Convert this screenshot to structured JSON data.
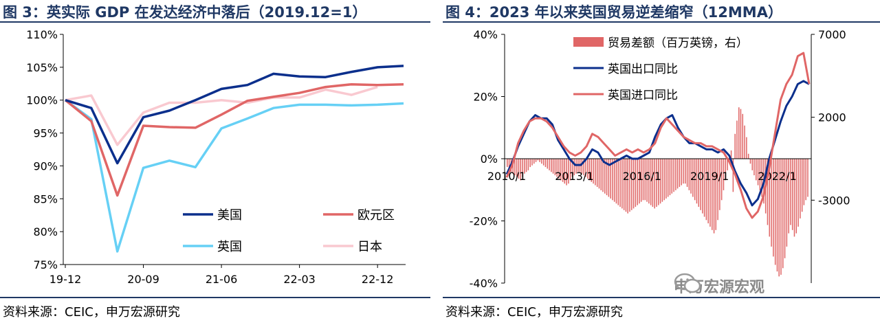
{
  "left": {
    "title": "图 3：英实际 GDP 在发达经济中落后（2019.12=1）",
    "source": "资料来源：CEIC，申万宏源研究",
    "chart_data": {
      "type": "line",
      "x": [
        "2019-12",
        "2020-03",
        "2020-06",
        "2020-09",
        "2020-12",
        "2021-03",
        "2021-06",
        "2021-09",
        "2021-12",
        "2022-03",
        "2022-06",
        "2022-09",
        "2022-12",
        "2023-03"
      ],
      "xticks": [
        "19-12",
        "20-09",
        "21-06",
        "22-03",
        "22-12"
      ],
      "yticks": [
        "75%",
        "80%",
        "85%",
        "90%",
        "95%",
        "100%",
        "105%",
        "110%"
      ],
      "ylim": [
        75,
        110
      ],
      "series": [
        {
          "name": "美国",
          "color": "#0b2f8c",
          "values": [
            100,
            98.8,
            90.4,
            97.4,
            98.4,
            100.0,
            101.7,
            102.3,
            104.0,
            103.6,
            103.5,
            104.3,
            105.0,
            105.2
          ]
        },
        {
          "name": "欧元区",
          "color": "#e06666",
          "values": [
            100,
            96.8,
            85.5,
            96.1,
            95.9,
            95.8,
            97.8,
            99.9,
            100.5,
            101.1,
            102.0,
            102.4,
            102.3,
            102.4
          ]
        },
        {
          "name": "英国",
          "color": "#66d0f5",
          "values": [
            100,
            97.1,
            77.0,
            89.7,
            90.8,
            89.8,
            95.7,
            97.2,
            98.8,
            99.3,
            99.3,
            99.2,
            99.3,
            99.5
          ]
        },
        {
          "name": "日本",
          "color": "#f9c9d0",
          "values": [
            100,
            100.7,
            93.2,
            98.1,
            99.6,
            99.6,
            100.0,
            99.6,
            100.4,
            100.4,
            101.6,
            100.8,
            102.0,
            null
          ]
        }
      ]
    }
  },
  "right": {
    "title": "图 4：2023 年以来英国贸易逆差缩窄（12MMA）",
    "source": "资料来源：CEIC，申万宏源研究",
    "watermark": "申万宏源宏观",
    "chart_data": {
      "type": "bar+line",
      "x_range": [
        "2010/1",
        "2023/6"
      ],
      "xticks": [
        "2010/1",
        "2013/1",
        "2016/1",
        "2019/1",
        "2022/1"
      ],
      "y_left_ticks": [
        "-40%",
        "-20%",
        "0%",
        "20%",
        "40%"
      ],
      "y_left_lim": [
        -40,
        40
      ],
      "y_right_ticks": [
        "-3000",
        "2000",
        "7000"
      ],
      "y_right_lim": [
        -8000,
        7000
      ],
      "bar_series": {
        "name": "贸易差额（百万英镑，右）",
        "color": "#e06666",
        "values": [
          -1000,
          -1200,
          -1300,
          -1400,
          -1500,
          -1600,
          -1700,
          -1800,
          -1600,
          -1400,
          -1300,
          -1200,
          -1000,
          -900,
          -800,
          -700,
          -600,
          -700,
          -800,
          -900,
          -1000,
          -1100,
          -1200,
          -1300,
          -1400,
          -1500,
          -1600,
          -1700,
          -1800,
          -1900,
          -2000,
          -2100,
          -2000,
          -1800,
          -1600,
          -1500,
          -1400,
          -1300,
          -1300,
          -1400,
          -1500,
          -1600,
          -1700,
          -1800,
          -1900,
          -2000,
          -2100,
          -2200,
          -2300,
          -2400,
          -2500,
          -2600,
          -2700,
          -2800,
          -2900,
          -3000,
          -3100,
          -3200,
          -3300,
          -3400,
          -3500,
          -3600,
          -3700,
          -3800,
          -3700,
          -3600,
          -3500,
          -3400,
          -3300,
          -3200,
          -3100,
          -3000,
          -3000,
          -3100,
          -3200,
          -3300,
          -3400,
          -3500,
          -3400,
          -3300,
          -3200,
          -3100,
          -3000,
          -2900,
          -2800,
          -2700,
          -2600,
          -2500,
          -2400,
          -2300,
          -2200,
          -2100,
          -2000,
          -2000,
          -2200,
          -2400,
          -2600,
          -2800,
          -3000,
          -3200,
          -3400,
          -3600,
          -3800,
          -4000,
          -4200,
          -4400,
          -4600,
          -4800,
          -5000,
          -4800,
          -4200,
          -3600,
          -3000,
          -2400,
          -1800,
          -1200,
          -600,
          0,
          -2500,
          1000,
          1800,
          2600,
          2500,
          2200,
          1500,
          800,
          -200,
          -800,
          -1200,
          -1500,
          -1800,
          -2100,
          -2400,
          -2800,
          -3200,
          -3800,
          -4500,
          -5200,
          -5800,
          -6400,
          -6900,
          -7300,
          -7600,
          -7500,
          -7100,
          -6500,
          -5800,
          -5000,
          -4500,
          -4800,
          -5200,
          -5000,
          -4600,
          -4100,
          -3700,
          -3300,
          -3000,
          -2800
        ]
      },
      "line_series": [
        {
          "name": "英国出口同比",
          "color": "#0b2f8c",
          "values": [
            -5,
            -1,
            4,
            8,
            12,
            14,
            13,
            13,
            11,
            6,
            3,
            0,
            -2,
            -2,
            0,
            3,
            2,
            -1,
            -2,
            -1,
            0,
            1,
            0,
            0,
            1,
            2,
            7,
            11,
            13,
            14,
            10,
            7,
            5,
            5,
            4,
            3,
            3,
            2,
            3,
            1,
            -4,
            -8,
            -11,
            -15,
            -13,
            -8,
            0,
            6,
            12,
            17,
            20,
            24,
            25,
            24
          ]
        },
        {
          "name": "英国进口同比",
          "color": "#e06666",
          "values": [
            -6,
            -2,
            5,
            9,
            12,
            13,
            13,
            12,
            10,
            7,
            4,
            2,
            1,
            2,
            4,
            8,
            7,
            5,
            3,
            1,
            2,
            3,
            2,
            3,
            2,
            3,
            5,
            10,
            13,
            11,
            9,
            7,
            6,
            5,
            5,
            4,
            4,
            3,
            2,
            -1,
            -5,
            -10,
            -16,
            -19,
            -17,
            -12,
            -3,
            8,
            19,
            24,
            27,
            33,
            34,
            24
          ]
        }
      ],
      "vline_x": "2023/5"
    }
  }
}
